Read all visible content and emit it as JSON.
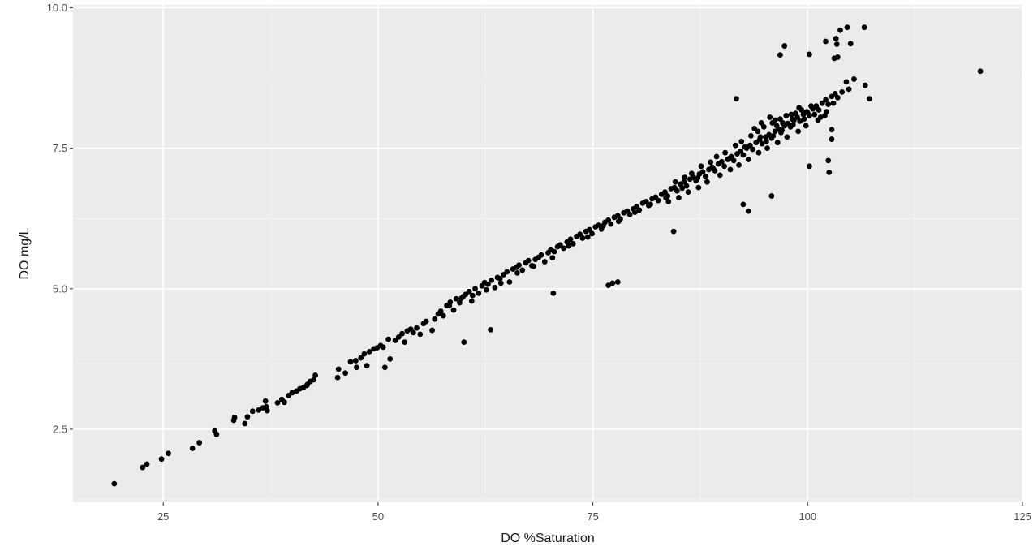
{
  "chart_data": {
    "type": "scatter",
    "title": "",
    "xlabel": "DO %Saturation",
    "ylabel": "DO mg/L",
    "xlim": [
      14.5,
      125
    ],
    "ylim": [
      1.2,
      10.05
    ],
    "x_ticks": [
      25,
      50,
      75,
      100,
      125
    ],
    "y_ticks": [
      2.5,
      5.0,
      7.5,
      10.0
    ],
    "x_tick_labels": [
      "25",
      "50",
      "75",
      "100",
      "125"
    ],
    "y_tick_labels": [
      "2.5",
      "5.0",
      "7.5",
      "10.0"
    ],
    "grid": true,
    "legend": "none",
    "colors": {
      "panel": "#ebebeb",
      "grid_major": "#ffffff",
      "grid_minor": "#f5f5f5",
      "point": "#000000"
    },
    "points": [
      [
        19.3,
        1.53
      ],
      [
        22.6,
        1.82
      ],
      [
        23.1,
        1.88
      ],
      [
        24.8,
        1.97
      ],
      [
        25.6,
        2.07
      ],
      [
        28.4,
        2.16
      ],
      [
        29.2,
        2.26
      ],
      [
        31.2,
        2.41
      ],
      [
        31.0,
        2.47
      ],
      [
        33.2,
        2.66
      ],
      [
        33.3,
        2.71
      ],
      [
        34.5,
        2.6
      ],
      [
        34.8,
        2.72
      ],
      [
        35.4,
        2.82
      ],
      [
        36.1,
        2.84
      ],
      [
        36.6,
        2.88
      ],
      [
        37.0,
        2.9
      ],
      [
        36.9,
        3.0
      ],
      [
        37.1,
        2.83
      ],
      [
        38.3,
        2.97
      ],
      [
        38.8,
        3.03
      ],
      [
        39.1,
        2.98
      ],
      [
        39.6,
        3.1
      ],
      [
        40.0,
        3.15
      ],
      [
        40.5,
        3.18
      ],
      [
        40.9,
        3.22
      ],
      [
        41.3,
        3.24
      ],
      [
        41.8,
        3.3
      ],
      [
        42.1,
        3.35
      ],
      [
        42.5,
        3.38
      ],
      [
        42.7,
        3.46
      ],
      [
        41.7,
        3.28
      ],
      [
        45.3,
        3.42
      ],
      [
        45.4,
        3.57
      ],
      [
        46.2,
        3.5
      ],
      [
        46.8,
        3.7
      ],
      [
        47.4,
        3.72
      ],
      [
        47.5,
        3.6
      ],
      [
        48.0,
        3.77
      ],
      [
        48.4,
        3.84
      ],
      [
        48.7,
        3.63
      ],
      [
        49.0,
        3.88
      ],
      [
        49.5,
        3.93
      ],
      [
        49.9,
        3.95
      ],
      [
        50.3,
        3.99
      ],
      [
        50.6,
        3.96
      ],
      [
        50.8,
        3.6
      ],
      [
        51.4,
        3.75
      ],
      [
        51.2,
        4.1
      ],
      [
        52.0,
        4.08
      ],
      [
        52.4,
        4.14
      ],
      [
        52.8,
        4.2
      ],
      [
        53.1,
        4.05
      ],
      [
        53.4,
        4.25
      ],
      [
        53.8,
        4.28
      ],
      [
        54.1,
        4.22
      ],
      [
        54.5,
        4.3
      ],
      [
        54.9,
        4.19
      ],
      [
        55.3,
        4.38
      ],
      [
        55.6,
        4.42
      ],
      [
        56.3,
        4.26
      ],
      [
        56.6,
        4.46
      ],
      [
        57.0,
        4.55
      ],
      [
        57.3,
        4.6
      ],
      [
        57.6,
        4.52
      ],
      [
        58.0,
        4.7
      ],
      [
        58.4,
        4.76
      ],
      [
        58.8,
        4.62
      ],
      [
        59.1,
        4.82
      ],
      [
        59.5,
        4.75
      ],
      [
        59.9,
        4.86
      ],
      [
        60.2,
        4.9
      ],
      [
        60.6,
        4.95
      ],
      [
        60.9,
        4.78
      ],
      [
        61.3,
        5.0
      ],
      [
        61.7,
        4.92
      ],
      [
        62.1,
        5.05
      ],
      [
        62.4,
        5.11
      ],
      [
        62.8,
        5.08
      ],
      [
        63.2,
        5.15
      ],
      [
        63.6,
        5.02
      ],
      [
        63.9,
        5.2
      ],
      [
        64.2,
        5.18
      ],
      [
        64.6,
        5.25
      ],
      [
        65.0,
        5.3
      ],
      [
        65.3,
        5.12
      ],
      [
        65.7,
        5.35
      ],
      [
        66.1,
        5.38
      ],
      [
        66.4,
        5.42
      ],
      [
        66.8,
        5.33
      ],
      [
        67.2,
        5.46
      ],
      [
        67.5,
        5.5
      ],
      [
        67.9,
        5.41
      ],
      [
        68.3,
        5.52
      ],
      [
        68.7,
        5.56
      ],
      [
        69.0,
        5.6
      ],
      [
        69.4,
        5.48
      ],
      [
        69.8,
        5.64
      ],
      [
        70.1,
        5.7
      ],
      [
        70.5,
        5.66
      ],
      [
        70.9,
        5.75
      ],
      [
        71.2,
        5.78
      ],
      [
        71.6,
        5.72
      ],
      [
        72.0,
        5.83
      ],
      [
        72.4,
        5.88
      ],
      [
        72.7,
        5.8
      ],
      [
        73.1,
        5.93
      ],
      [
        73.5,
        5.97
      ],
      [
        73.8,
        5.9
      ],
      [
        74.2,
        6.02
      ],
      [
        74.6,
        6.05
      ],
      [
        74.9,
        5.98
      ],
      [
        75.3,
        6.1
      ],
      [
        75.7,
        6.13
      ],
      [
        76.0,
        6.06
      ],
      [
        76.4,
        6.18
      ],
      [
        76.8,
        6.22
      ],
      [
        77.1,
        6.15
      ],
      [
        77.5,
        6.27
      ],
      [
        77.9,
        6.3
      ],
      [
        78.2,
        6.24
      ],
      [
        78.6,
        6.35
      ],
      [
        79.0,
        6.38
      ],
      [
        79.3,
        6.32
      ],
      [
        79.7,
        6.42
      ],
      [
        80.1,
        6.46
      ],
      [
        80.4,
        6.4
      ],
      [
        80.8,
        6.52
      ],
      [
        81.2,
        6.55
      ],
      [
        81.5,
        6.48
      ],
      [
        81.9,
        6.6
      ],
      [
        82.3,
        6.63
      ],
      [
        82.6,
        6.57
      ],
      [
        83.0,
        6.68
      ],
      [
        83.4,
        6.72
      ],
      [
        83.7,
        6.65
      ],
      [
        84.1,
        6.78
      ],
      [
        84.5,
        6.8
      ],
      [
        84.8,
        6.74
      ],
      [
        85.2,
        6.86
      ],
      [
        85.6,
        6.9
      ],
      [
        85.9,
        6.83
      ],
      [
        86.3,
        6.95
      ],
      [
        86.7,
        6.98
      ],
      [
        87.0,
        6.92
      ],
      [
        87.4,
        7.04
      ],
      [
        87.8,
        7.08
      ],
      [
        88.1,
        7.0
      ],
      [
        88.5,
        7.12
      ],
      [
        88.9,
        7.16
      ],
      [
        89.2,
        7.1
      ],
      [
        89.6,
        7.22
      ],
      [
        90.0,
        7.26
      ],
      [
        90.3,
        7.18
      ],
      [
        90.7,
        7.3
      ],
      [
        91.1,
        7.35
      ],
      [
        91.4,
        7.28
      ],
      [
        91.8,
        7.4
      ],
      [
        92.2,
        7.45
      ],
      [
        92.5,
        7.38
      ],
      [
        92.9,
        7.5
      ],
      [
        93.3,
        7.55
      ],
      [
        93.6,
        7.48
      ],
      [
        94.0,
        7.6
      ],
      [
        94.4,
        7.65
      ],
      [
        94.7,
        7.58
      ],
      [
        95.1,
        7.7
      ],
      [
        95.5,
        7.74
      ],
      [
        95.8,
        7.68
      ],
      [
        96.2,
        7.8
      ],
      [
        96.6,
        7.84
      ],
      [
        96.9,
        7.78
      ],
      [
        97.3,
        7.9
      ],
      [
        97.7,
        7.94
      ],
      [
        98.0,
        7.88
      ],
      [
        98.4,
        8.0
      ],
      [
        98.8,
        8.05
      ],
      [
        99.1,
        7.98
      ],
      [
        99.5,
        8.1
      ],
      [
        99.9,
        8.15
      ],
      [
        100.2,
        8.08
      ],
      [
        100.6,
        8.2
      ],
      [
        101.0,
        8.25
      ],
      [
        101.3,
        8.18
      ],
      [
        101.7,
        8.3
      ],
      [
        102.1,
        8.36
      ],
      [
        102.4,
        8.28
      ],
      [
        102.8,
        8.42
      ],
      [
        103.2,
        8.47
      ],
      [
        103.5,
        8.4
      ],
      [
        104.0,
        8.5
      ],
      [
        104.8,
        8.55
      ],
      [
        58.3,
        4.7
      ],
      [
        59.7,
        4.83
      ],
      [
        61.0,
        4.88
      ],
      [
        62.6,
        4.98
      ],
      [
        64.3,
        5.1
      ],
      [
        66.2,
        5.28
      ],
      [
        68.1,
        5.4
      ],
      [
        70.3,
        5.55
      ],
      [
        72.2,
        5.76
      ],
      [
        74.4,
        5.92
      ],
      [
        76.2,
        6.12
      ],
      [
        78.0,
        6.2
      ],
      [
        79.9,
        6.36
      ],
      [
        81.7,
        6.5
      ],
      [
        83.5,
        6.62
      ],
      [
        85.4,
        6.79
      ],
      [
        87.2,
        6.97
      ],
      [
        89.0,
        7.14
      ],
      [
        90.9,
        7.32
      ],
      [
        92.7,
        7.52
      ],
      [
        94.5,
        7.7
      ],
      [
        96.4,
        7.9
      ],
      [
        98.2,
        8.02
      ],
      [
        100.0,
        8.13
      ],
      [
        84.6,
        6.9
      ],
      [
        85.7,
        6.98
      ],
      [
        86.5,
        7.05
      ],
      [
        87.6,
        7.18
      ],
      [
        88.7,
        7.25
      ],
      [
        89.4,
        7.35
      ],
      [
        90.4,
        7.42
      ],
      [
        91.6,
        7.55
      ],
      [
        92.3,
        7.62
      ],
      [
        93.4,
        7.72
      ],
      [
        94.2,
        7.8
      ],
      [
        94.9,
        7.88
      ],
      [
        95.9,
        7.95
      ],
      [
        96.8,
        8.02
      ],
      [
        97.5,
        8.08
      ],
      [
        98.6,
        8.12
      ],
      [
        99.3,
        8.18
      ],
      [
        100.4,
        8.25
      ],
      [
        83.8,
        6.55
      ],
      [
        85.0,
        6.62
      ],
      [
        86.1,
        6.72
      ],
      [
        87.3,
        6.8
      ],
      [
        88.3,
        6.9
      ],
      [
        89.8,
        7.02
      ],
      [
        91.0,
        7.12
      ],
      [
        92.0,
        7.2
      ],
      [
        93.1,
        7.3
      ],
      [
        94.3,
        7.42
      ],
      [
        95.3,
        7.5
      ],
      [
        96.5,
        7.6
      ],
      [
        97.6,
        7.7
      ],
      [
        98.9,
        7.8
      ],
      [
        99.8,
        7.9
      ],
      [
        101.2,
        8.0
      ],
      [
        93.8,
        7.85
      ],
      [
        94.6,
        7.95
      ],
      [
        95.6,
        8.05
      ],
      [
        96.2,
        8.0
      ],
      [
        97.1,
        7.95
      ],
      [
        98.1,
        8.1
      ],
      [
        99.0,
        8.22
      ],
      [
        95.2,
        7.62
      ],
      [
        96.0,
        7.72
      ],
      [
        97.0,
        7.82
      ],
      [
        98.3,
        7.92
      ],
      [
        99.6,
        8.02
      ],
      [
        100.8,
        8.1
      ],
      [
        101.5,
        8.05
      ],
      [
        102.2,
        8.15
      ],
      [
        103.0,
        8.3
      ],
      [
        60.0,
        4.05
      ],
      [
        63.1,
        4.27
      ],
      [
        70.4,
        4.92
      ],
      [
        76.8,
        5.06
      ],
      [
        77.3,
        5.1
      ],
      [
        77.9,
        5.12
      ],
      [
        84.4,
        6.02
      ],
      [
        92.5,
        6.5
      ],
      [
        93.1,
        6.38
      ],
      [
        95.8,
        6.65
      ],
      [
        91.7,
        8.38
      ],
      [
        100.2,
        7.18
      ],
      [
        102.4,
        7.28
      ],
      [
        102.5,
        7.07
      ],
      [
        102.8,
        7.66
      ],
      [
        102.8,
        7.83
      ],
      [
        102.0,
        8.08
      ],
      [
        100.2,
        9.17
      ],
      [
        96.8,
        9.16
      ],
      [
        97.3,
        9.32
      ],
      [
        102.1,
        9.4
      ],
      [
        103.1,
        9.1
      ],
      [
        103.5,
        9.12
      ],
      [
        103.4,
        9.35
      ],
      [
        103.8,
        9.6
      ],
      [
        104.6,
        9.65
      ],
      [
        105.0,
        9.36
      ],
      [
        106.6,
        9.65
      ],
      [
        103.3,
        9.45
      ],
      [
        104.5,
        8.68
      ],
      [
        105.4,
        8.73
      ],
      [
        106.7,
        8.62
      ],
      [
        107.2,
        8.38
      ],
      [
        120.1,
        8.87
      ]
    ]
  }
}
